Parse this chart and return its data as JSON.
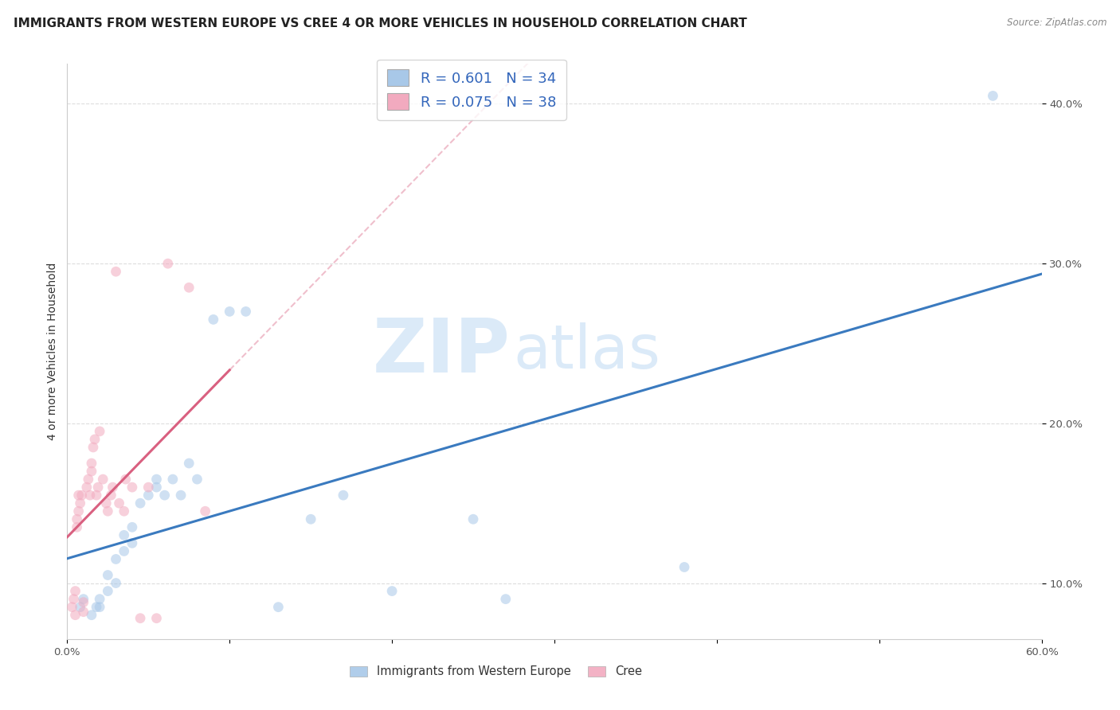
{
  "title": "IMMIGRANTS FROM WESTERN EUROPE VS CREE 4 OR MORE VEHICLES IN HOUSEHOLD CORRELATION CHART",
  "source": "Source: ZipAtlas.com",
  "ylabel": "4 or more Vehicles in Household",
  "watermark_zip": "ZIP",
  "watermark_atlas": "atlas",
  "xlim": [
    0.0,
    0.6
  ],
  "ylim": [
    0.065,
    0.425
  ],
  "xticks": [
    0.0,
    0.1,
    0.2,
    0.3,
    0.4,
    0.5,
    0.6
  ],
  "xtick_labels_show": [
    "0.0%",
    "",
    "",
    "",
    "",
    "",
    "60.0%"
  ],
  "yticks": [
    0.1,
    0.2,
    0.3,
    0.4
  ],
  "ytick_labels": [
    "10.0%",
    "20.0%",
    "30.0%",
    "40.0%"
  ],
  "legend_series": [
    {
      "label": "Immigrants from Western Europe",
      "color": "#a8c8e8",
      "line_color": "#3a7abf",
      "R": 0.601,
      "N": 34
    },
    {
      "label": "Cree",
      "color": "#f2aabf",
      "line_color": "#d96080",
      "R": 0.075,
      "N": 38
    }
  ],
  "blue_scatter_x": [
    0.008,
    0.01,
    0.015,
    0.018,
    0.02,
    0.02,
    0.025,
    0.025,
    0.03,
    0.03,
    0.035,
    0.035,
    0.04,
    0.04,
    0.045,
    0.05,
    0.055,
    0.055,
    0.06,
    0.065,
    0.07,
    0.075,
    0.08,
    0.09,
    0.1,
    0.11,
    0.13,
    0.15,
    0.17,
    0.2,
    0.25,
    0.27,
    0.38,
    0.57
  ],
  "blue_scatter_y": [
    0.085,
    0.09,
    0.08,
    0.085,
    0.085,
    0.09,
    0.095,
    0.105,
    0.1,
    0.115,
    0.12,
    0.13,
    0.125,
    0.135,
    0.15,
    0.155,
    0.16,
    0.165,
    0.155,
    0.165,
    0.155,
    0.175,
    0.165,
    0.265,
    0.27,
    0.27,
    0.085,
    0.14,
    0.155,
    0.095,
    0.14,
    0.09,
    0.11,
    0.405
  ],
  "pink_scatter_x": [
    0.003,
    0.004,
    0.005,
    0.005,
    0.006,
    0.006,
    0.007,
    0.007,
    0.008,
    0.009,
    0.01,
    0.01,
    0.012,
    0.013,
    0.014,
    0.015,
    0.015,
    0.016,
    0.017,
    0.018,
    0.019,
    0.02,
    0.022,
    0.024,
    0.025,
    0.027,
    0.028,
    0.03,
    0.032,
    0.035,
    0.036,
    0.04,
    0.045,
    0.05,
    0.055,
    0.062,
    0.075,
    0.085
  ],
  "pink_scatter_y": [
    0.085,
    0.09,
    0.08,
    0.095,
    0.135,
    0.14,
    0.145,
    0.155,
    0.15,
    0.155,
    0.082,
    0.088,
    0.16,
    0.165,
    0.155,
    0.17,
    0.175,
    0.185,
    0.19,
    0.155,
    0.16,
    0.195,
    0.165,
    0.15,
    0.145,
    0.155,
    0.16,
    0.295,
    0.15,
    0.145,
    0.165,
    0.16,
    0.078,
    0.16,
    0.078,
    0.3,
    0.285,
    0.145
  ],
  "grid_color": "#dddddd",
  "background_color": "#ffffff",
  "scatter_alpha": 0.55,
  "scatter_size": 85,
  "title_fontsize": 11,
  "axis_label_fontsize": 10,
  "tick_fontsize": 9.5,
  "legend_fontsize": 13
}
